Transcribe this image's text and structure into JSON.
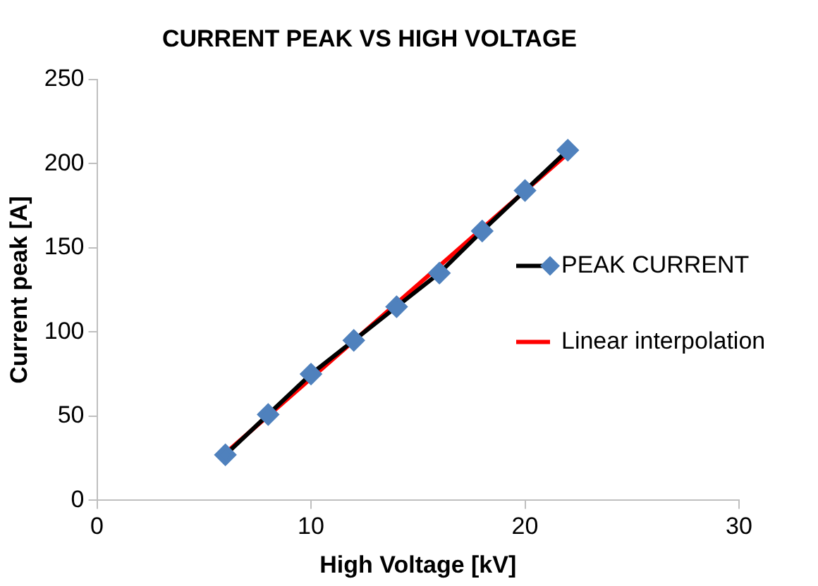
{
  "chart_data": {
    "type": "line",
    "title": "CURRENT PEAK VS HIGH VOLTAGE",
    "xlabel": "High Voltage [kV]",
    "ylabel": "Current peak [A]",
    "x": [
      6,
      8,
      10,
      12,
      14,
      16,
      18,
      20,
      22
    ],
    "series": [
      {
        "name": "PEAK CURRENT",
        "color": "#000000",
        "colors": [
          "#4f81bd",
          "#4f81bd",
          "#4f81bd",
          "#4f81bd",
          "#4f81bd",
          "#4f81bd",
          "#4f81bd",
          "#4f81bd",
          "#4f81bd"
        ],
        "marker": "diamond",
        "values": [
          27,
          51,
          75,
          95,
          115,
          135,
          160,
          184,
          208
        ]
      },
      {
        "name": "Linear interpolation",
        "color": "#ff0000",
        "marker": "none",
        "x": [
          6,
          22
        ],
        "values": [
          28,
          206
        ]
      }
    ],
    "xlim": [
      0,
      30
    ],
    "xticks": [
      0,
      10,
      20,
      30
    ],
    "ylim": [
      0,
      250
    ],
    "yticks": [
      0,
      50,
      100,
      150,
      200,
      250
    ],
    "grid": false,
    "legend": "right"
  }
}
